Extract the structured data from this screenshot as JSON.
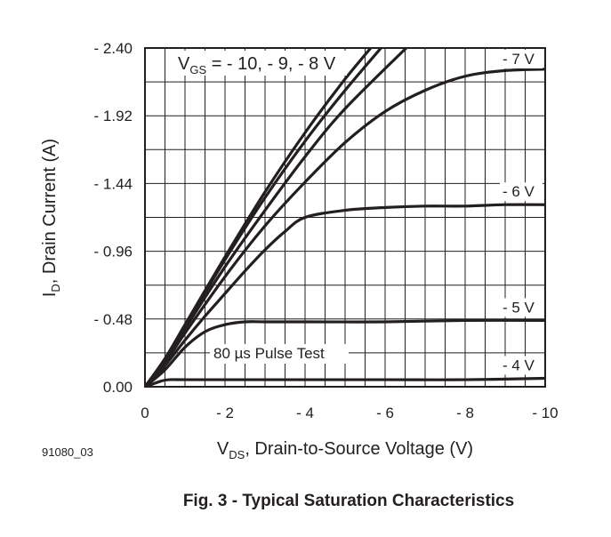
{
  "figure_id": "91080_03",
  "caption": "Fig. 3 - Typical Saturation Characteristics",
  "chart_data": {
    "type": "line",
    "title": "",
    "xlabel": {
      "main": "V",
      "sub": "DS",
      "rest": ", Drain-to-Source Voltage (V)"
    },
    "ylabel": {
      "main": "I",
      "sub": "D",
      "rest": ", Drain Current (A)"
    },
    "xlim": [
      0,
      -10
    ],
    "ylim": [
      0,
      2.4
    ],
    "x_ticks": [
      0,
      -2,
      -4,
      -6,
      -8,
      -10
    ],
    "x_tick_labels": [
      "0",
      "- 2",
      "- 4",
      "- 6",
      "- 8",
      "- 10"
    ],
    "y_ticks": [
      0,
      0.48,
      0.96,
      1.44,
      1.92,
      2.4
    ],
    "y_tick_labels": [
      "0.00",
      "- 0.48",
      "- 0.96",
      "- 1.44",
      "- 1.92",
      "- 2.40"
    ],
    "grid": true,
    "annotations": {
      "vgs_prefix": "V",
      "vgs_sub": "GS",
      "vgs_values": " = - 10, - 9, - 8 V",
      "pulse_test": "80 µs Pulse Test"
    },
    "series": [
      {
        "name": "- 10 V",
        "x": [
          0,
          -0.5,
          -1,
          -2,
          -3,
          -4,
          -5,
          -6
        ],
        "y": [
          0,
          0.2,
          0.44,
          0.92,
          1.38,
          1.8,
          2.18,
          2.52
        ]
      },
      {
        "name": "- 9 V",
        "x": [
          0,
          -0.5,
          -1,
          -2,
          -3,
          -4,
          -5,
          -6.2
        ],
        "y": [
          0,
          0.19,
          0.43,
          0.9,
          1.34,
          1.74,
          2.1,
          2.5
        ]
      },
      {
        "name": "- 8 V",
        "x": [
          0,
          -0.5,
          -1,
          -2,
          -3,
          -4,
          -5,
          -6.6
        ],
        "y": [
          0,
          0.18,
          0.41,
          0.85,
          1.25,
          1.63,
          1.97,
          2.42
        ]
      },
      {
        "name": "- 7 V",
        "x": [
          0,
          -0.5,
          -1,
          -2,
          -3,
          -4,
          -5,
          -6,
          -7,
          -8,
          -9,
          -10
        ],
        "y": [
          0,
          0.17,
          0.38,
          0.78,
          1.14,
          1.45,
          1.73,
          1.95,
          2.1,
          2.2,
          2.24,
          2.25
        ]
      },
      {
        "name": "- 6 V",
        "x": [
          0,
          -0.5,
          -1,
          -1.5,
          -2,
          -2.5,
          -3,
          -3.5,
          -4,
          -5,
          -6,
          -7,
          -8,
          -9,
          -10
        ],
        "y": [
          0,
          0.15,
          0.33,
          0.5,
          0.66,
          0.82,
          0.97,
          1.1,
          1.2,
          1.25,
          1.27,
          1.28,
          1.28,
          1.29,
          1.29
        ]
      },
      {
        "name": "- 5 V",
        "x": [
          0,
          -0.5,
          -1,
          -1.5,
          -2,
          -2.5,
          -3,
          -4,
          -6,
          -8,
          -10
        ],
        "y": [
          0,
          0.12,
          0.28,
          0.39,
          0.44,
          0.46,
          0.46,
          0.46,
          0.46,
          0.47,
          0.47
        ]
      },
      {
        "name": "- 4 V",
        "x": [
          0,
          -0.2,
          -0.4,
          -0.6,
          -1,
          -2,
          -4,
          -6,
          -8,
          -10
        ],
        "y": [
          0,
          0.02,
          0.04,
          0.05,
          0.05,
          0.05,
          0.05,
          0.05,
          0.05,
          0.06
        ]
      }
    ]
  }
}
